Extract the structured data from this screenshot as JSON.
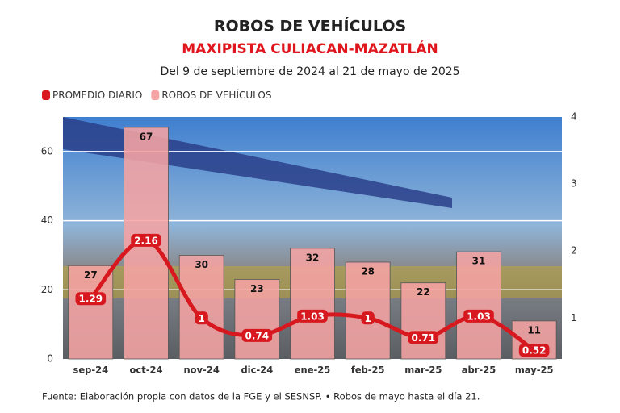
{
  "chart_data": {
    "type": "bar",
    "title": "ROBOS DE VEHÍCULOS",
    "subtitle": "MAXIPISTA CULIACAN-MAZATLÁN",
    "description": "Del 9 de septiembre de 2024 al 21 de mayo de 2025",
    "source": "Fuente: Elaboración propia con datos de la FGE y el SESNSP. • Robos de mayo hasta el día 21.",
    "categories": [
      "sep-24",
      "oct-24",
      "nov-24",
      "dic-24",
      "ene-25",
      "feb-25",
      "mar-25",
      "abr-25",
      "may-25"
    ],
    "series": [
      {
        "name": "PROMEDIO DIARIO",
        "type": "line",
        "axis": "y2",
        "color": "#d7191f",
        "values": [
          1.29,
          2.16,
          1,
          0.74,
          1.03,
          1,
          0.71,
          1.03,
          0.52
        ]
      },
      {
        "name": "ROBOS DE VEHÍCULOS",
        "type": "bar",
        "color": "#f5a3a3",
        "values": [
          27,
          67,
          30,
          23,
          32,
          28,
          22,
          31,
          11
        ]
      }
    ],
    "ylim": [
      0,
      70
    ],
    "yticks": [
      0,
      20,
      40,
      60
    ],
    "y2lim": [
      0.39,
      4
    ],
    "y2ticks": [
      1,
      2,
      3,
      4
    ],
    "grid": true,
    "legend": "top-left"
  }
}
